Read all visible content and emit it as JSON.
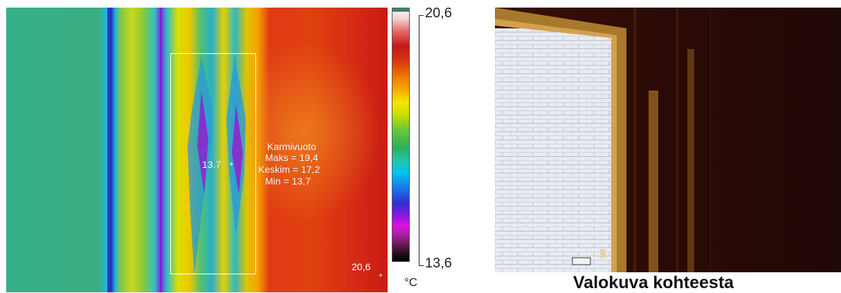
{
  "thermal": {
    "roi_name": "Karmivuoto",
    "stat_max": "Maks = 19,4",
    "stat_mean": "Keskim = 17,2",
    "stat_min": "Min = 13,7",
    "spot_value": "13.7",
    "corner_value": "20,6"
  },
  "scale": {
    "max_label": "20,6",
    "min_label": "13,6",
    "unit": "°C"
  },
  "photo": {
    "caption": "Valokuva kohteesta"
  }
}
